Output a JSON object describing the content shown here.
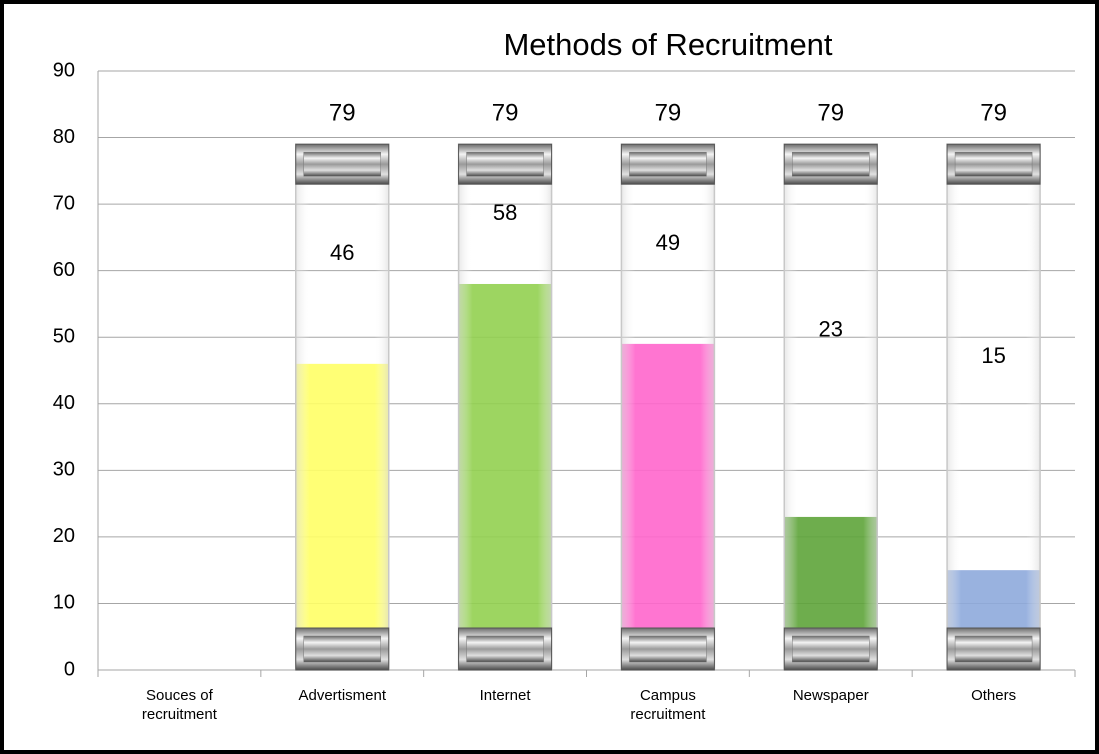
{
  "chart_data": {
    "type": "bar",
    "title": "Methods of Recruitment",
    "categories": [
      "Souces of recruitment",
      "Advertisment",
      "Internet",
      "Campus recruitment",
      "Newspaper",
      "Others"
    ],
    "series": [
      {
        "values": [
          null,
          46,
          58,
          49,
          23,
          15
        ],
        "colors": [
          null,
          "#ffff66",
          "#92d050",
          "#ff66cc",
          "#5ea43a",
          "#8eaadb"
        ]
      },
      {
        "values": [
          null,
          79,
          79,
          79,
          79,
          79
        ]
      }
    ],
    "ylim": [
      0,
      90
    ],
    "yticks": [
      0,
      10,
      20,
      30,
      40,
      50,
      60,
      70,
      80,
      90
    ],
    "grid": true
  }
}
